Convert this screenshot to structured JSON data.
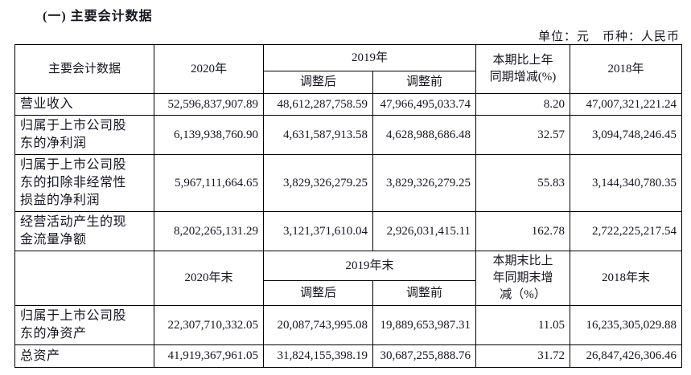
{
  "page": {
    "title": "(一) 主要会计数据",
    "unit_note": "单位：元　币种：人民币"
  },
  "table1": {
    "header": {
      "col_label": "主要会计数据",
      "col_2020": "2020年",
      "col_2019": "2019年",
      "col_adjusted_after": "调整后",
      "col_adjusted_before": "调整前",
      "col_change": "本期比上年同期增减(%)",
      "col_2018": "2018年"
    },
    "rows": [
      {
        "label": "营业收入",
        "values": [
          "52,596,837,907.89",
          "48,612,287,758.59",
          "47,966,495,033.74",
          "8.20",
          "47,007,321,221.24"
        ]
      },
      {
        "label": "归属于上市公司股东的净利润",
        "values": [
          "6,139,938,760.90",
          "4,631,587,913.58",
          "4,628,988,686.48",
          "32.57",
          "3,094,748,246.45"
        ]
      },
      {
        "label": "归属于上市公司股东的扣除非经常性损益的净利润",
        "values": [
          "5,967,111,664.65",
          "3,829,326,279.25",
          "3,829,326,279.25",
          "55.83",
          "3,144,340,780.35"
        ]
      },
      {
        "label": "经营活动产生的现金流量净额",
        "values": [
          "8,202,265,131.29",
          "3,121,371,610.04",
          "2,926,031,415.11",
          "162.78",
          "2,722,225,217.54"
        ]
      }
    ]
  },
  "table2": {
    "header": {
      "col_label": "",
      "col_2020": "2020年末",
      "col_2019": "2019年末",
      "col_adjusted_after": "调整后",
      "col_adjusted_before": "调整前",
      "col_change": "本期末比上年同期末增减（%）",
      "col_2018": "2018年末"
    },
    "rows": [
      {
        "label": "归属于上市公司股东的净资产",
        "values": [
          "22,307,710,332.05",
          "20,087,743,995.08",
          "19,889,653,987.31",
          "11.05",
          "16,235,305,029.88"
        ]
      },
      {
        "label": "总资产",
        "values": [
          "41,919,367,961.05",
          "31,824,155,398.19",
          "30,687,255,888.76",
          "31.72",
          "26,847,426,306.46"
        ]
      }
    ]
  }
}
